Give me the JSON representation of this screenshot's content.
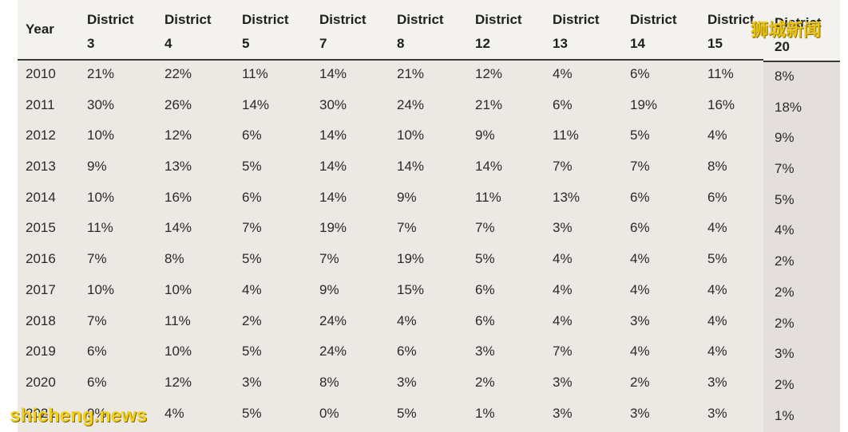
{
  "headers": [
    "Year",
    "District\n3",
    "District\n4",
    "District\n5",
    "District\n7",
    "District\n8",
    "District\n12",
    "District\n13",
    "District\n14",
    "District\n15",
    "District\n20"
  ],
  "rows": [
    [
      "2010",
      "21%",
      "22%",
      "11%",
      "14%",
      "21%",
      "12%",
      "4%",
      "6%",
      "11%",
      "8%"
    ],
    [
      "2011",
      "30%",
      "26%",
      "14%",
      "30%",
      "24%",
      "21%",
      "6%",
      "19%",
      "16%",
      "18%"
    ],
    [
      "2012",
      "10%",
      "12%",
      "6%",
      "14%",
      "10%",
      "9%",
      "11%",
      "5%",
      "4%",
      "9%"
    ],
    [
      "2013",
      "9%",
      "13%",
      "5%",
      "14%",
      "14%",
      "14%",
      "7%",
      "7%",
      "8%",
      "7%"
    ],
    [
      "2014",
      "10%",
      "16%",
      "6%",
      "14%",
      "9%",
      "11%",
      "13%",
      "6%",
      "6%",
      "5%"
    ],
    [
      "2015",
      "11%",
      "14%",
      "7%",
      "19%",
      "7%",
      "7%",
      "3%",
      "6%",
      "4%",
      "4%"
    ],
    [
      "2016",
      "7%",
      "8%",
      "5%",
      "7%",
      "19%",
      "5%",
      "4%",
      "4%",
      "5%",
      "2%"
    ],
    [
      "2017",
      "10%",
      "10%",
      "4%",
      "9%",
      "15%",
      "6%",
      "4%",
      "4%",
      "4%",
      "2%"
    ],
    [
      "2018",
      "7%",
      "11%",
      "2%",
      "24%",
      "4%",
      "6%",
      "4%",
      "3%",
      "4%",
      "2%"
    ],
    [
      "2019",
      "6%",
      "10%",
      "5%",
      "24%",
      "6%",
      "3%",
      "7%",
      "4%",
      "4%",
      "3%"
    ],
    [
      "2020",
      "6%",
      "12%",
      "3%",
      "8%",
      "3%",
      "2%",
      "3%",
      "2%",
      "3%",
      "2%"
    ],
    [
      "2021",
      "9%",
      "4%",
      "5%",
      "0%",
      "5%",
      "1%",
      "3%",
      "3%",
      "3%",
      "1%"
    ]
  ],
  "watermark_top": "狮城新闻",
  "watermark_bottom": "shicheng.news"
}
